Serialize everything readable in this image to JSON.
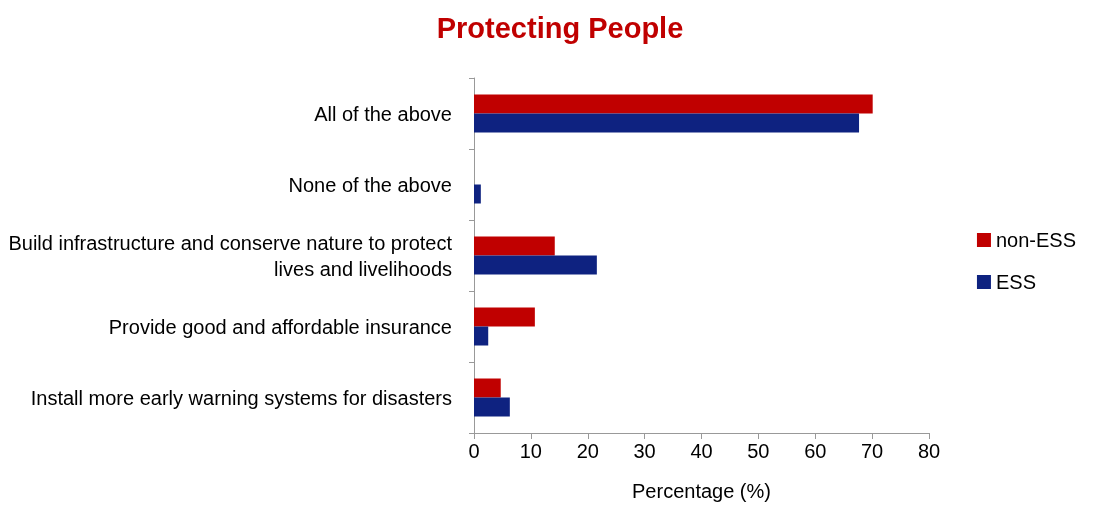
{
  "chart_data": {
    "type": "bar",
    "orientation": "horizontal",
    "title": "Protecting People",
    "xlabel": "Percentage (%)",
    "categories": [
      "All of the above",
      "None of the above",
      "Build infrastructure and conserve nature to protect lives and livelihoods",
      "Provide good and affordable insurance",
      "Install more early warning systems for disasters"
    ],
    "series": [
      {
        "name": "non-ESS",
        "color": "#c00000",
        "values": [
          70.1,
          0,
          14.2,
          10.7,
          4.7
        ]
      },
      {
        "name": "ESS",
        "color": "#0e2280",
        "values": [
          67.7,
          1.2,
          21.6,
          2.5,
          6.3
        ]
      }
    ],
    "xlim": [
      0,
      80
    ],
    "xticks": [
      0,
      10,
      20,
      30,
      40,
      50,
      60,
      70,
      80
    ],
    "grid": false,
    "legend": "right"
  }
}
